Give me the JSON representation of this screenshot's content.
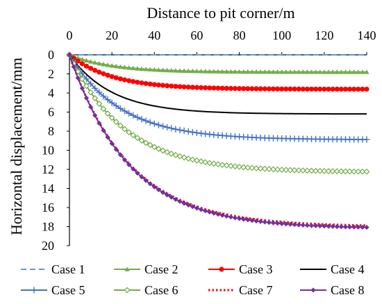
{
  "chart_data": {
    "type": "line",
    "xlabel": "Distance to pit corner/m",
    "ylabel": "Horizontal displacement/mm",
    "xlim": [
      0,
      140
    ],
    "ylim": [
      0,
      20
    ],
    "y_reversed": true,
    "x_axis_position": "top",
    "grid": false,
    "legend_position": "bottom",
    "xticks": [
      0,
      20,
      40,
      60,
      80,
      100,
      120,
      140
    ],
    "yticks": [
      0,
      2,
      4,
      6,
      8,
      10,
      12,
      14,
      16,
      18,
      20
    ],
    "series": [
      {
        "name": "Case 1",
        "color": "#5b9bd5",
        "style": "dashed",
        "marker": "none",
        "asymptote": 0.0,
        "decay": 20
      },
      {
        "name": "Case 2",
        "color": "#70ad47",
        "style": "solid",
        "marker": "triangle",
        "asymptote": 1.8,
        "decay": 20
      },
      {
        "name": "Case 3",
        "color": "#ff0000",
        "style": "solid",
        "marker": "circle",
        "asymptote": 3.6,
        "decay": 20
      },
      {
        "name": "Case 4",
        "color": "#000000",
        "style": "solid",
        "marker": "none",
        "asymptote": 6.2,
        "decay": 20
      },
      {
        "name": "Case 5",
        "color": "#4472c4",
        "style": "solid",
        "marker": "plus",
        "asymptote": 8.9,
        "decay": 24
      },
      {
        "name": "Case 6",
        "color": "#70ad47",
        "style": "solid",
        "marker": "diamond-open",
        "asymptote": 12.3,
        "decay": 26
      },
      {
        "name": "Case 7",
        "color": "#ff0000",
        "style": "dotted",
        "marker": "none",
        "asymptote": 18.0,
        "decay": 28
      },
      {
        "name": "Case 8",
        "color": "#7030a0",
        "style": "solid",
        "marker": "diamond",
        "asymptote": 18.2,
        "decay": 28
      }
    ]
  }
}
